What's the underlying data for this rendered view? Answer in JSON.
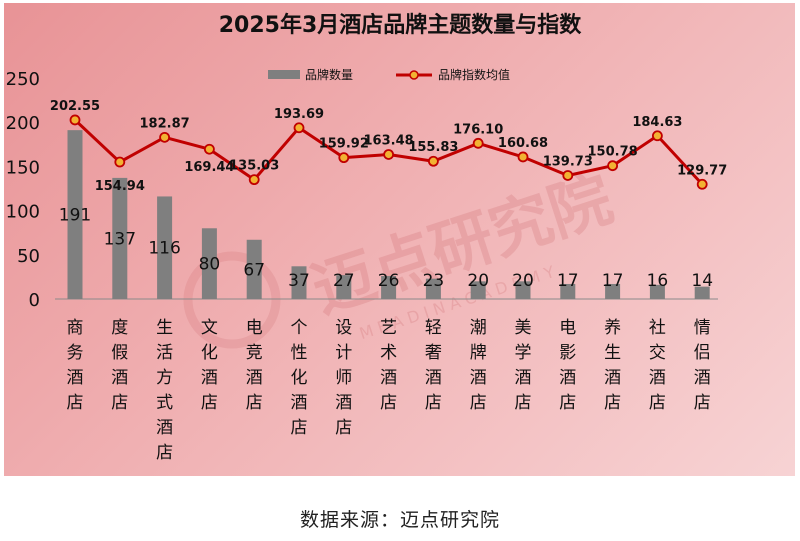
{
  "chart_data": {
    "type": "bar+line",
    "title": "2025年3月酒店品牌主题数量与指数",
    "categories": [
      "商务酒店",
      "度假酒店",
      "生活方式酒店",
      "文化酒店",
      "电竞酒店",
      "个性化酒店",
      "设计师酒店",
      "艺术酒店",
      "轻奢酒店",
      "潮牌酒店",
      "美学酒店",
      "电影酒店",
      "养生酒店",
      "社交酒店",
      "情侣酒店"
    ],
    "series": [
      {
        "name": "品牌数量",
        "type": "bar",
        "color": "#7f7f7f",
        "values": [
          191,
          137,
          116,
          80,
          67,
          37,
          27,
          26,
          23,
          20,
          20,
          17,
          17,
          16,
          14
        ]
      },
      {
        "name": "品牌指数均值",
        "type": "line",
        "color": "#c00000",
        "values": [
          202.55,
          154.94,
          182.87,
          169.44,
          135.03,
          193.69,
          159.92,
          163.48,
          155.83,
          176.1,
          160.68,
          139.73,
          150.78,
          184.63,
          129.77
        ]
      }
    ],
    "bar_labels": [
      "191",
      "137",
      "116",
      "80",
      "67",
      "37",
      "27",
      "26",
      "23",
      "20",
      "20",
      "17",
      "17",
      "16",
      "14"
    ],
    "line_labels": [
      "202.55",
      "154.94",
      "182.87",
      "169.44",
      "135.03",
      "193.69",
      "159.92",
      "163.48",
      "155.83",
      "176.10",
      "160.68",
      "139.73",
      "150.78",
      "184.63",
      "129.77"
    ],
    "yticks": [
      "0",
      "50",
      "100",
      "150",
      "200",
      "250"
    ],
    "ylim": [
      0,
      250
    ],
    "legend_position": "top-center",
    "grid": false
  },
  "watermark": {
    "text": "迈点研究院",
    "subtext": "M E A D I N   A C A D E M Y"
  },
  "footer": {
    "source": "数据来源：迈点研究院"
  }
}
